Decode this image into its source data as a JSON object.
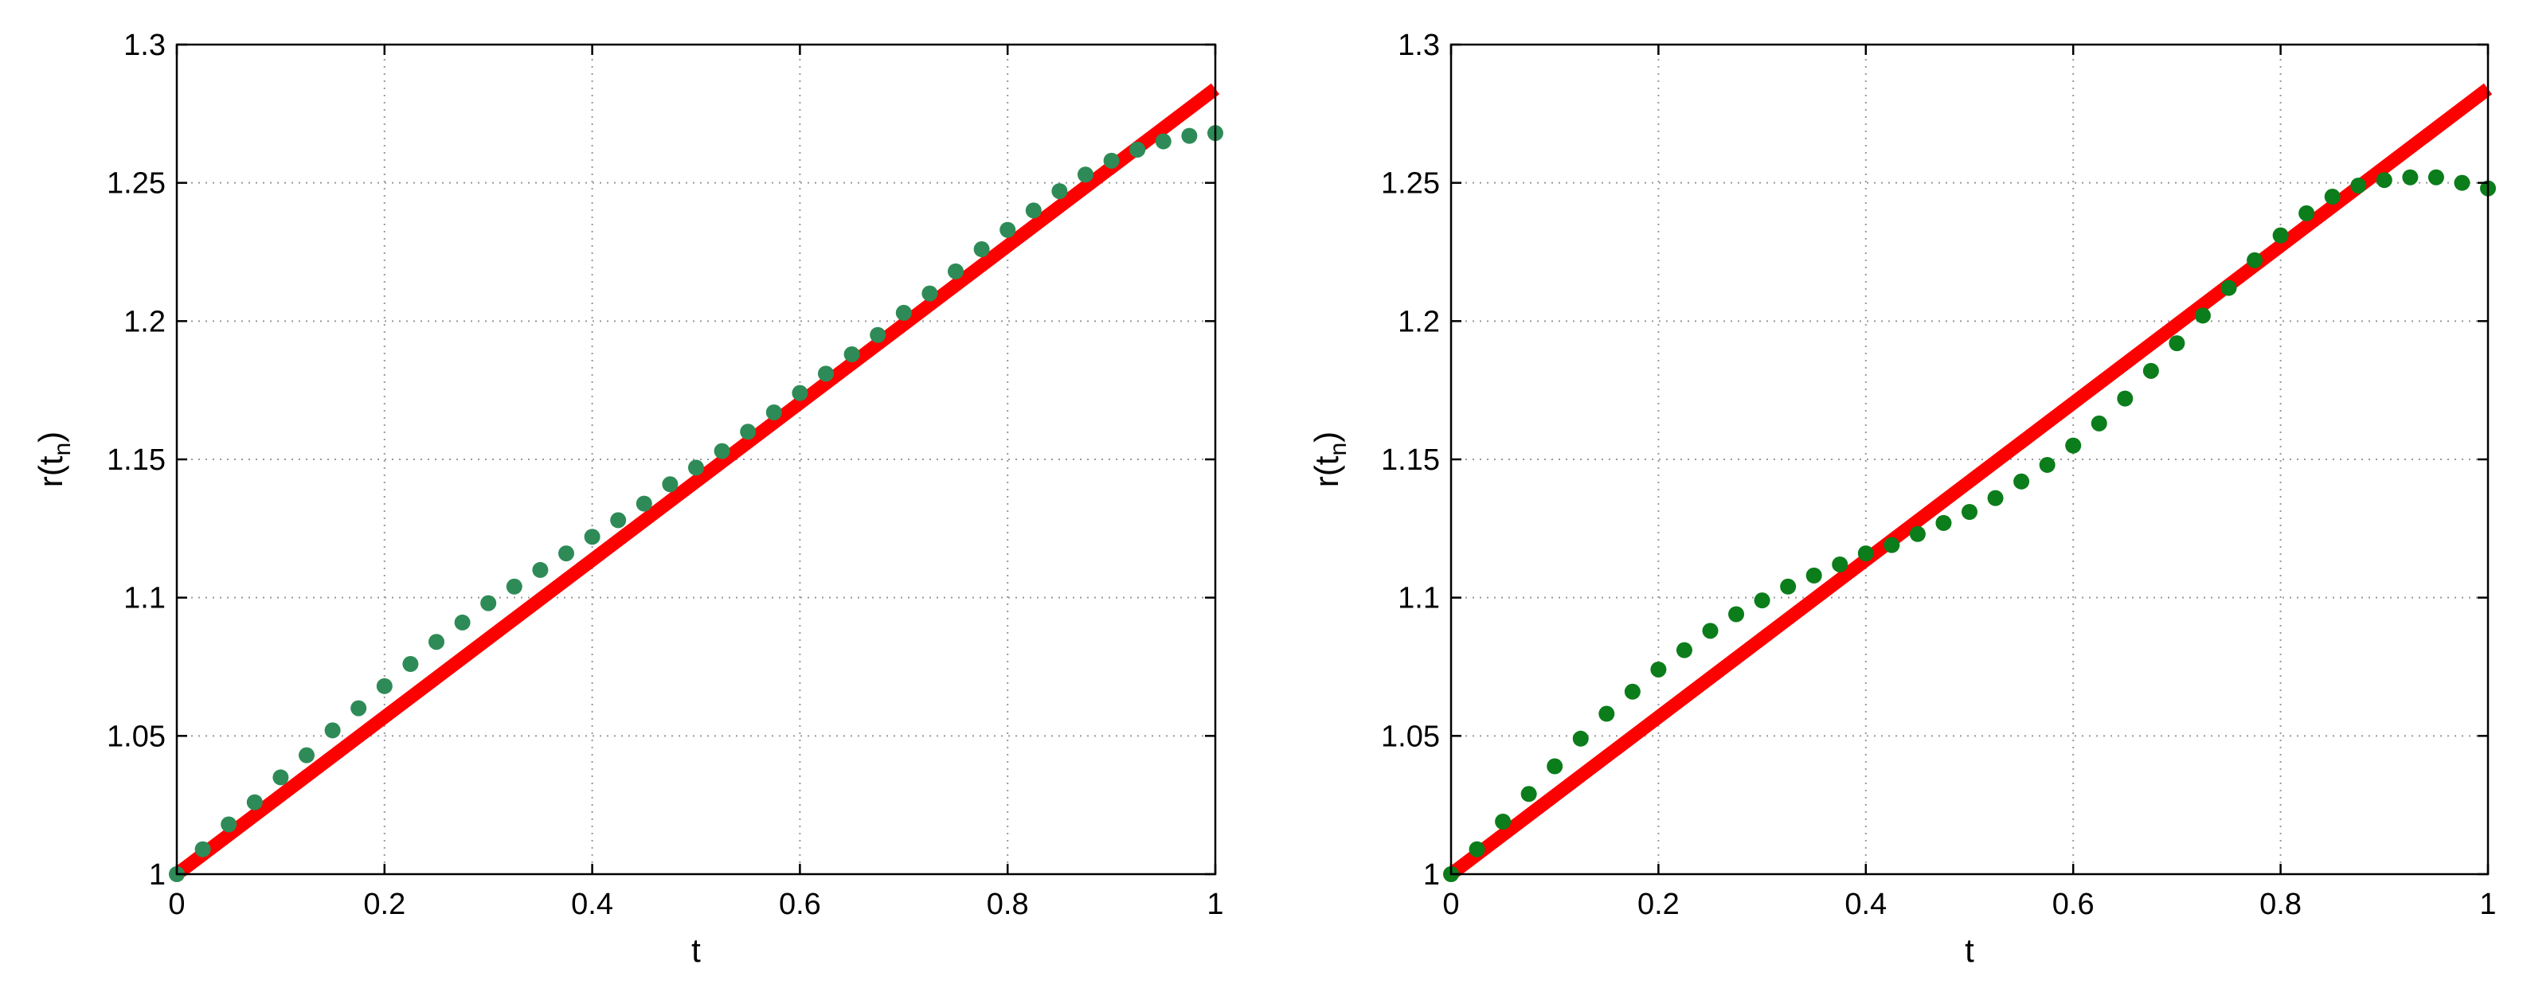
{
  "figure": {
    "colors": {
      "background": "#ffffff",
      "axes": "#000000",
      "grid": "#999999",
      "line_series": "#ff0000",
      "left_dots": "#2e8b57",
      "right_dots": "#0b7d1b"
    }
  },
  "chart_data": [
    {
      "type": "scatter",
      "title": "",
      "xlabel": "t",
      "ylabel": "r(t",
      "ylabel_subscript": "n",
      "ylabel_close": ")",
      "xlim": [
        0,
        1
      ],
      "ylim": [
        1,
        1.3
      ],
      "grid": true,
      "legend": "none",
      "xticks": [
        0,
        0.2,
        0.4,
        0.6,
        0.8,
        1
      ],
      "xtick_labels": [
        "0",
        "0.2",
        "0.4",
        "0.6",
        "0.8",
        "1"
      ],
      "yticks": [
        1,
        1.05,
        1.1,
        1.15,
        1.2,
        1.25,
        1.3
      ],
      "ytick_labels": [
        "1",
        "1.05",
        "1.1",
        "1.15",
        "1.2",
        "1.25",
        "1.3"
      ],
      "series": [
        {
          "style": "line",
          "color": "#ff0000",
          "x": [
            0,
            1
          ],
          "y": [
            1,
            1.284
          ]
        },
        {
          "style": "markers",
          "color": "#2e8b57",
          "x": [
            0,
            0.025,
            0.05,
            0.075,
            0.1,
            0.125,
            0.15,
            0.175,
            0.2,
            0.225,
            0.25,
            0.275,
            0.3,
            0.325,
            0.35,
            0.375,
            0.4,
            0.425,
            0.45,
            0.475,
            0.5,
            0.525,
            0.55,
            0.575,
            0.6,
            0.625,
            0.65,
            0.675,
            0.7,
            0.725,
            0.75,
            0.775,
            0.8,
            0.825,
            0.85,
            0.875,
            0.9,
            0.925,
            0.95,
            0.975,
            1
          ],
          "y": [
            1.0,
            1.009,
            1.018,
            1.026,
            1.035,
            1.043,
            1.052,
            1.06,
            1.068,
            1.076,
            1.084,
            1.091,
            1.098,
            1.104,
            1.11,
            1.116,
            1.122,
            1.128,
            1.134,
            1.141,
            1.147,
            1.153,
            1.16,
            1.167,
            1.174,
            1.181,
            1.188,
            1.195,
            1.203,
            1.21,
            1.218,
            1.226,
            1.233,
            1.24,
            1.247,
            1.253,
            1.258,
            1.262,
            1.265,
            1.267,
            1.268
          ]
        }
      ]
    },
    {
      "type": "scatter",
      "title": "",
      "xlabel": "t",
      "ylabel": "r(t",
      "ylabel_subscript": "n",
      "ylabel_close": ")",
      "xlim": [
        0,
        1
      ],
      "ylim": [
        1,
        1.3
      ],
      "grid": true,
      "legend": "none",
      "xticks": [
        0,
        0.2,
        0.4,
        0.6,
        0.8,
        1
      ],
      "xtick_labels": [
        "0",
        "0.2",
        "0.4",
        "0.6",
        "0.8",
        "1"
      ],
      "yticks": [
        1,
        1.05,
        1.1,
        1.15,
        1.2,
        1.25,
        1.3
      ],
      "ytick_labels": [
        "1",
        "1.05",
        "1.1",
        "1.15",
        "1.2",
        "1.25",
        "1.3"
      ],
      "series": [
        {
          "style": "line",
          "color": "#ff0000",
          "x": [
            0,
            1
          ],
          "y": [
            1,
            1.284
          ]
        },
        {
          "style": "markers",
          "color": "#0b7d1b",
          "x": [
            0,
            0.025,
            0.05,
            0.075,
            0.1,
            0.125,
            0.15,
            0.175,
            0.2,
            0.225,
            0.25,
            0.275,
            0.3,
            0.325,
            0.35,
            0.375,
            0.4,
            0.425,
            0.45,
            0.475,
            0.5,
            0.525,
            0.55,
            0.575,
            0.6,
            0.625,
            0.65,
            0.675,
            0.7,
            0.725,
            0.75,
            0.775,
            0.8,
            0.825,
            0.85,
            0.875,
            0.9,
            0.925,
            0.95,
            0.975,
            1
          ],
          "y": [
            1.0,
            1.009,
            1.019,
            1.029,
            1.039,
            1.049,
            1.058,
            1.066,
            1.074,
            1.081,
            1.088,
            1.094,
            1.099,
            1.104,
            1.108,
            1.112,
            1.116,
            1.119,
            1.123,
            1.127,
            1.131,
            1.136,
            1.142,
            1.148,
            1.155,
            1.163,
            1.172,
            1.182,
            1.192,
            1.202,
            1.212,
            1.222,
            1.231,
            1.239,
            1.245,
            1.249,
            1.251,
            1.252,
            1.252,
            1.25,
            1.248
          ]
        }
      ]
    }
  ]
}
